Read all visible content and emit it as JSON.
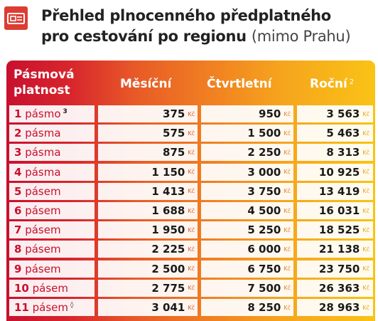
{
  "header": {
    "title_line1": "Přehled plnocenného předplatného",
    "title_line2": "pro cestování po regionu",
    "title_suffix": "(mimo Prahu)",
    "logo_icon": "ticket-card-icon"
  },
  "table": {
    "columns": [
      "Pásmová platnost",
      "Měsíční",
      "Čtvrtletní",
      "Roční"
    ],
    "col0_line1": "Pásmová",
    "col0_line2": "platnost",
    "annual_footnote": "2",
    "currency": "Kč",
    "rows": [
      {
        "zones": "1",
        "word": "pásmo",
        "note": "3",
        "monthly": "375",
        "quarterly": "950",
        "annual": "3 563"
      },
      {
        "zones": "2",
        "word": "pásma",
        "note": "",
        "monthly": "575",
        "quarterly": "1 500",
        "annual": "5 463"
      },
      {
        "zones": "3",
        "word": "pásma",
        "note": "",
        "monthly": "875",
        "quarterly": "2 250",
        "annual": "8 313"
      },
      {
        "zones": "4",
        "word": "pásma",
        "note": "",
        "monthly": "1 150",
        "quarterly": "3 000",
        "annual": "10 925"
      },
      {
        "zones": "5",
        "word": "pásem",
        "note": "",
        "monthly": "1 413",
        "quarterly": "3 750",
        "annual": "13 419"
      },
      {
        "zones": "6",
        "word": "pásem",
        "note": "",
        "monthly": "1 688",
        "quarterly": "4 500",
        "annual": "16 031"
      },
      {
        "zones": "7",
        "word": "pásem",
        "note": "",
        "monthly": "1 950",
        "quarterly": "5 250",
        "annual": "18 525"
      },
      {
        "zones": "8",
        "word": "pásem",
        "note": "",
        "monthly": "2 225",
        "quarterly": "6 000",
        "annual": "21 138"
      },
      {
        "zones": "9",
        "word": "pásem",
        "note": "",
        "monthly": "2 500",
        "quarterly": "6 750",
        "annual": "23 750"
      },
      {
        "zones": "10",
        "word": "pásem",
        "note": "",
        "monthly": "2 775",
        "quarterly": "7 500",
        "annual": "26 363"
      },
      {
        "zones": "11",
        "word": "pásem",
        "note": "◊",
        "monthly": "3 041",
        "quarterly": "8 250",
        "annual": "28 963"
      }
    ]
  },
  "colors": {
    "brand_red": "#c8102e",
    "logo_red": "#dc3d33",
    "gradient_start": "#c8102e",
    "gradient_end": "#f9c316"
  }
}
